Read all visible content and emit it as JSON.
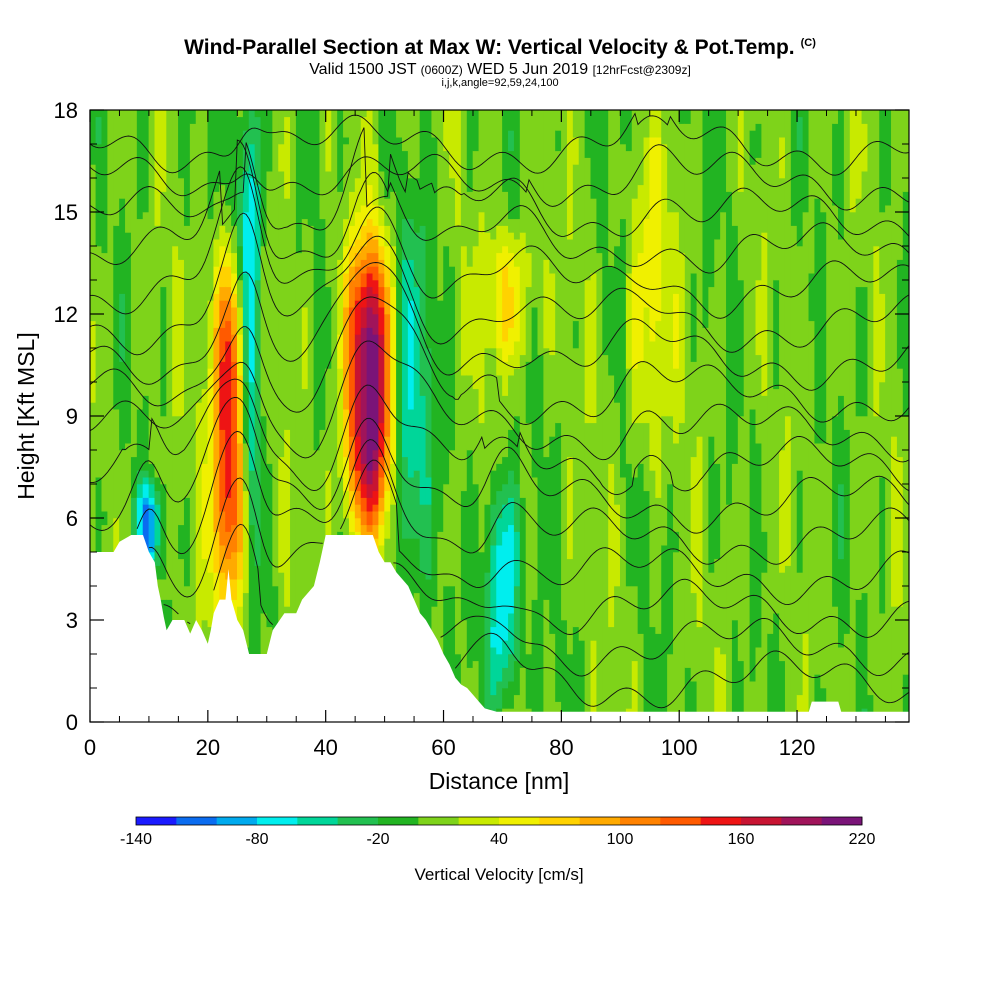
{
  "header": {
    "title": "Wind-Parallel Section at Max W: Vertical Velocity & Pot.Temp.",
    "copyright": "(C)",
    "valid_prefix": "Valid 1500 JST",
    "valid_utc": "(0600Z)",
    "valid_date": "WED 5 Jun 2019",
    "forecast": "[12hrFcst@2309z]",
    "indices": "i,j,k,angle=92,59,24,100"
  },
  "chart_data": {
    "type": "heatmap",
    "xlabel": "Distance [nm]",
    "ylabel": "Height [Kft MSL]",
    "xlim": [
      0,
      139
    ],
    "ylim": [
      0,
      18
    ],
    "x_ticks": [
      0,
      20,
      40,
      60,
      80,
      100,
      120
    ],
    "y_ticks": [
      0,
      3,
      6,
      9,
      12,
      15,
      18
    ],
    "colorbar": {
      "title": "Vertical Velocity [cm/s]",
      "levels": [
        -140,
        -120,
        -100,
        -80,
        -60,
        -40,
        -20,
        0,
        20,
        40,
        60,
        80,
        100,
        120,
        140,
        160,
        180,
        200,
        220
      ],
      "labeled_levels": [
        -140,
        -80,
        -20,
        40,
        100,
        160,
        220
      ],
      "colors": [
        "#1a1aff",
        "#0a6cf0",
        "#00aaee",
        "#00eeee",
        "#00d699",
        "#22c050",
        "#22b422",
        "#7ed31a",
        "#c8ea00",
        "#f0f000",
        "#ffd200",
        "#ffaa00",
        "#ff8200",
        "#ff5a00",
        "#ee1414",
        "#c81432",
        "#a0145a",
        "#7a1478"
      ]
    },
    "terrain_kft": [
      [
        0,
        5.0
      ],
      [
        4,
        5.0
      ],
      [
        5,
        5.3
      ],
      [
        7,
        5.5
      ],
      [
        9,
        5.5
      ],
      [
        10,
        5.0
      ],
      [
        11,
        4.7
      ],
      [
        11.5,
        4.0
      ],
      [
        12,
        3.6
      ],
      [
        12.5,
        3.1
      ],
      [
        13,
        2.7
      ],
      [
        14,
        3.0
      ],
      [
        16,
        3.0
      ],
      [
        17,
        2.6
      ],
      [
        18,
        3.0
      ],
      [
        19,
        2.7
      ],
      [
        20,
        2.3
      ],
      [
        20.5,
        2.7
      ],
      [
        21,
        3.2
      ],
      [
        22,
        3.6
      ],
      [
        23,
        3.6
      ],
      [
        23.5,
        4.5
      ],
      [
        24,
        3.6
      ],
      [
        25,
        3.0
      ],
      [
        26,
        2.7
      ],
      [
        27,
        2.0
      ],
      [
        30,
        2.0
      ],
      [
        31,
        2.7
      ],
      [
        33,
        3.2
      ],
      [
        35,
        3.2
      ],
      [
        36,
        3.6
      ],
      [
        38,
        4.0
      ],
      [
        39,
        4.7
      ],
      [
        40,
        5.5
      ],
      [
        43,
        5.5
      ],
      [
        45,
        5.5
      ],
      [
        48,
        5.5
      ],
      [
        49,
        5.0
      ],
      [
        50,
        4.7
      ],
      [
        51,
        4.7
      ],
      [
        52,
        4.4
      ],
      [
        54,
        4.0
      ],
      [
        55,
        3.6
      ],
      [
        56,
        3.2
      ],
      [
        57,
        3.0
      ],
      [
        58,
        2.7
      ],
      [
        59,
        2.4
      ],
      [
        60,
        2.0
      ],
      [
        61,
        1.7
      ],
      [
        62,
        1.3
      ],
      [
        63,
        1.1
      ],
      [
        64,
        1.0
      ],
      [
        65,
        0.8
      ],
      [
        66,
        0.6
      ],
      [
        67,
        0.4
      ],
      [
        69,
        0.3
      ],
      [
        72,
        0.3
      ],
      [
        76,
        0.3
      ],
      [
        80,
        0.3
      ],
      [
        100,
        0.3
      ],
      [
        122,
        0.3
      ],
      [
        122.5,
        0.6
      ],
      [
        127,
        0.6
      ],
      [
        127.5,
        0.3
      ],
      [
        139,
        0.3
      ]
    ],
    "w_features": [
      {
        "x": 24,
        "top": 13.5,
        "bottom": 3.5,
        "width": 4.5,
        "peak": 170
      },
      {
        "x": 27,
        "top": 18,
        "bottom": 4.5,
        "width": 3.0,
        "peak": -110
      },
      {
        "x": 47.5,
        "top": 14.0,
        "bottom": 5.5,
        "width": 5.5,
        "peak": 215
      },
      {
        "x": 54,
        "top": 14.5,
        "bottom": 4.0,
        "width": 5.0,
        "peak": -70
      },
      {
        "x": 70,
        "top": 7.0,
        "bottom": 0.5,
        "width": 4.0,
        "peak": -90
      },
      {
        "x": 10,
        "top": 7.0,
        "bottom": 4.5,
        "width": 3.0,
        "peak": -100
      },
      {
        "x": 71,
        "top": 14.5,
        "bottom": 10.5,
        "width": 6.0,
        "peak": 55
      },
      {
        "x": 95,
        "top": 16.5,
        "bottom": 8.0,
        "width": 5.0,
        "peak": 45
      }
    ],
    "theta_levels_K": [
      318,
      320,
      322,
      324,
      326,
      328,
      330,
      332,
      334,
      336,
      338,
      340,
      342,
      344,
      346,
      348
    ]
  }
}
